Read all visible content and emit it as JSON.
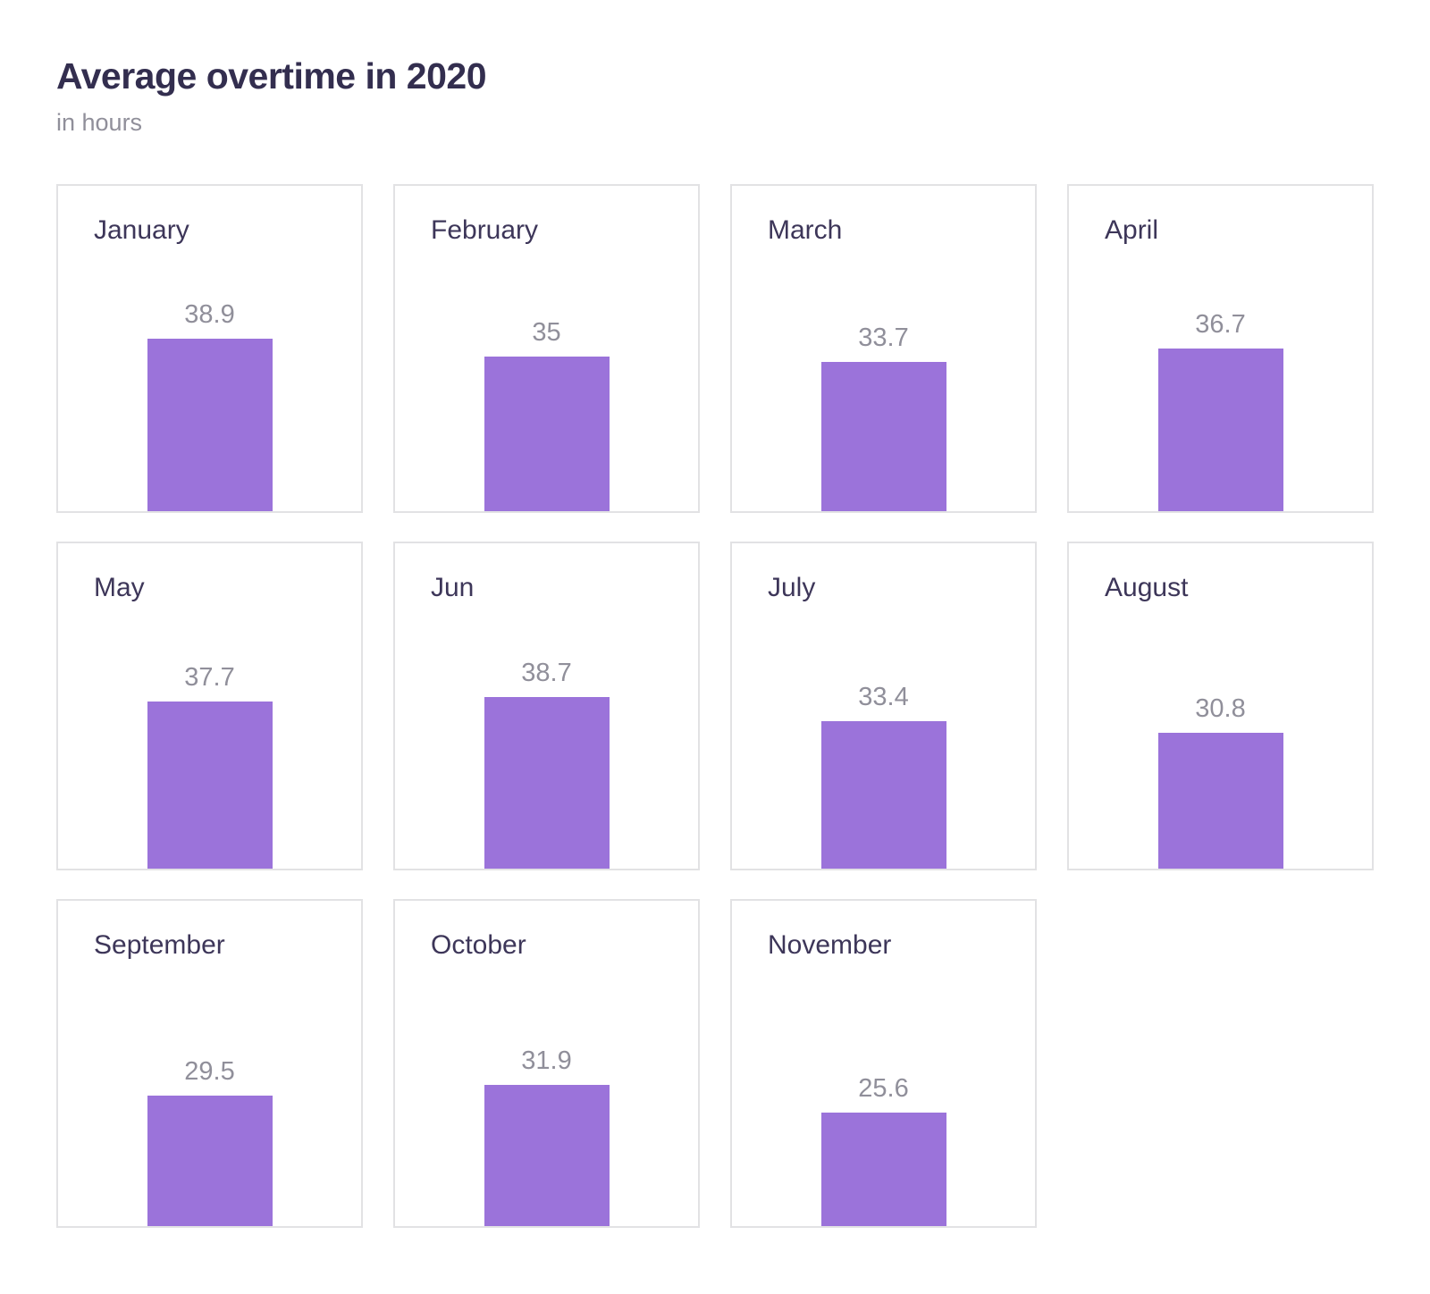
{
  "page": {
    "title": "Average overtime in 2020",
    "subtitle": "in hours"
  },
  "chart_data": {
    "type": "bar",
    "layout": "small_multiples_grid",
    "columns": 4,
    "title": "Average overtime in 2020",
    "subtitle": "in hours",
    "unit": "hours",
    "categories": [
      "January",
      "February",
      "March",
      "April",
      "May",
      "Jun",
      "July",
      "August",
      "September",
      "October",
      "November"
    ],
    "values": [
      38.9,
      35,
      33.7,
      36.7,
      37.7,
      38.7,
      33.4,
      30.8,
      29.5,
      31.9,
      25.6
    ],
    "ylim": [
      0,
      40
    ],
    "grid": "off",
    "legend": "none",
    "bar_color": "#9b73da",
    "colors": {
      "title": "#332e4f",
      "month_label": "#3d3659",
      "value_label": "#908f9a",
      "card_border": "#e2e2e4",
      "background": "#ffffff"
    }
  }
}
